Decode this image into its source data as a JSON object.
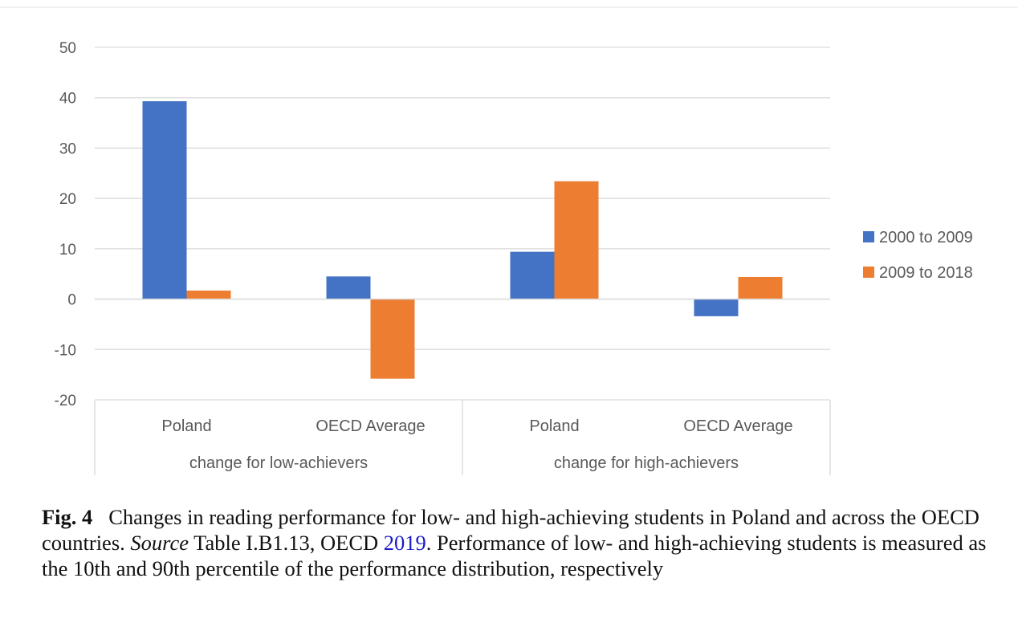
{
  "chart_data": {
    "type": "bar",
    "categories": [
      "Poland",
      "OECD Average",
      "Poland",
      "OECD Average"
    ],
    "groups": [
      "change for low-achievers",
      "change for high-achievers"
    ],
    "series": [
      {
        "name": "2000 to 2009",
        "values": [
          39.3,
          4.5,
          9.4,
          -3.4
        ],
        "color": "#4472c4"
      },
      {
        "name": "2009 to 2018",
        "values": [
          1.7,
          -15.8,
          23.4,
          4.4
        ],
        "color": "#ed7d31"
      }
    ],
    "yticks": [
      50,
      40,
      30,
      20,
      10,
      0,
      -10,
      -20
    ],
    "ylim": [
      -20,
      50
    ],
    "grid": true,
    "legend_position": "right"
  },
  "caption": {
    "label": "Fig. 4",
    "text_before": "Changes in reading performance for low- and high-achieving students in Poland and across the OECD countries.",
    "source_label": "Source",
    "source_text": "Table I.B1.13, OECD",
    "source_link": "2019",
    "text_after": ". Performance of low- and high-achieving students is measured as the 10th and 90th percentile of the performance distribution, respectively"
  }
}
